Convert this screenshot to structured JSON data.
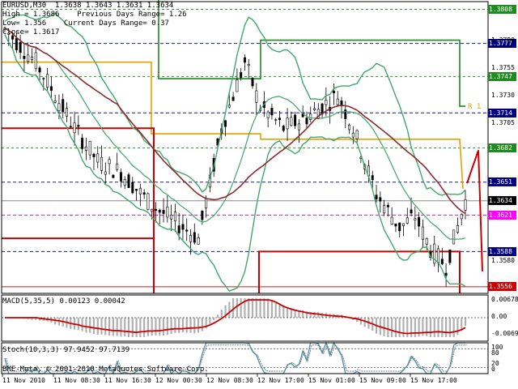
{
  "header": {
    "symbol_line": "EURUSD,M30  1.3638 1.3643 1.3631 1.3634",
    "high_line": "High = 1.3686    Previous Days Range= 1.26",
    "low_line": "Low= 1.356    Current Days Range= 0.37",
    "close_line": "Close= 1.3617"
  },
  "price_tags": [
    {
      "text": "1.3808",
      "color": "#1f8a1f",
      "fg": "#ffffff",
      "price": 1.3808
    },
    {
      "text": "1.3777",
      "color": "#000080",
      "fg": "#ffffff",
      "price": 1.3777
    },
    {
      "text": "1.3747",
      "color": "#1f8a1f",
      "fg": "#ffffff",
      "price": 1.3747
    },
    {
      "text": "1.3714",
      "color": "#000080",
      "fg": "#ffffff",
      "price": 1.3714
    },
    {
      "text": "1.3682",
      "color": "#1f8a1f",
      "fg": "#ffffff",
      "price": 1.3682
    },
    {
      "text": "1.3651",
      "color": "#000080",
      "fg": "#ffffff",
      "price": 1.3651
    },
    {
      "text": "1.3634",
      "color": "#000000",
      "fg": "#ffffff",
      "price": 1.3634
    },
    {
      "text": "1.3621",
      "color": "#ff00ff",
      "fg": "#ffffff",
      "price": 1.3621
    },
    {
      "text": "1.3588",
      "color": "#000080",
      "fg": "#ffffff",
      "price": 1.3588
    },
    {
      "text": "1.3556",
      "color": "#cc0000",
      "fg": "#ffffff",
      "price": 1.3556
    }
  ],
  "price_scale": [
    {
      "text": "1.3780",
      "price": 1.378
    },
    {
      "text": "1.3755",
      "price": 1.3755
    },
    {
      "text": "1.3730",
      "price": 1.373
    },
    {
      "text": "1.3705",
      "price": 1.3705
    },
    {
      "text": "1.3580",
      "price": 1.358
    }
  ],
  "pivot_labels": [
    {
      "text": "R 1",
      "color": "#e8a000"
    }
  ],
  "macd": {
    "label": "MACD(5,35,5) 0.00123 0.00042",
    "scale": [
      "0.00678",
      "0.00",
      "-0.00691"
    ]
  },
  "stoch": {
    "label": "Stoch(10,3,3) 97.9452 97.7139",
    "scale": [
      "100",
      "80",
      "20",
      "0"
    ]
  },
  "copyright": "BME-Meta, © 2001-2010 MetaQuotes Software Corp.",
  "time_axis": [
    "11 Nov 2010",
    "11 Nov 08:30",
    "11 Nov 16:30",
    "12 Nov 00:30",
    "12 Nov 08:30",
    "12 Nov 17:00",
    "15 Nov 01:00",
    "15 Nov 09:00",
    "15 Nov 17:00"
  ],
  "colors": {
    "candle": "#000000",
    "bollinger": "#3fa86a",
    "moving_average": "#8b2b2b",
    "macd_histogram": "#b0b0b0",
    "macd_signal": "#cc0000",
    "stoch_main": "#4a8fa8",
    "stoch_signal": "#808080",
    "pivot": "#e8a000",
    "resistance": "#1f8a1f",
    "support": "#cc0000",
    "dotted_level": "#000080",
    "current_level": "#ff00ff"
  }
}
